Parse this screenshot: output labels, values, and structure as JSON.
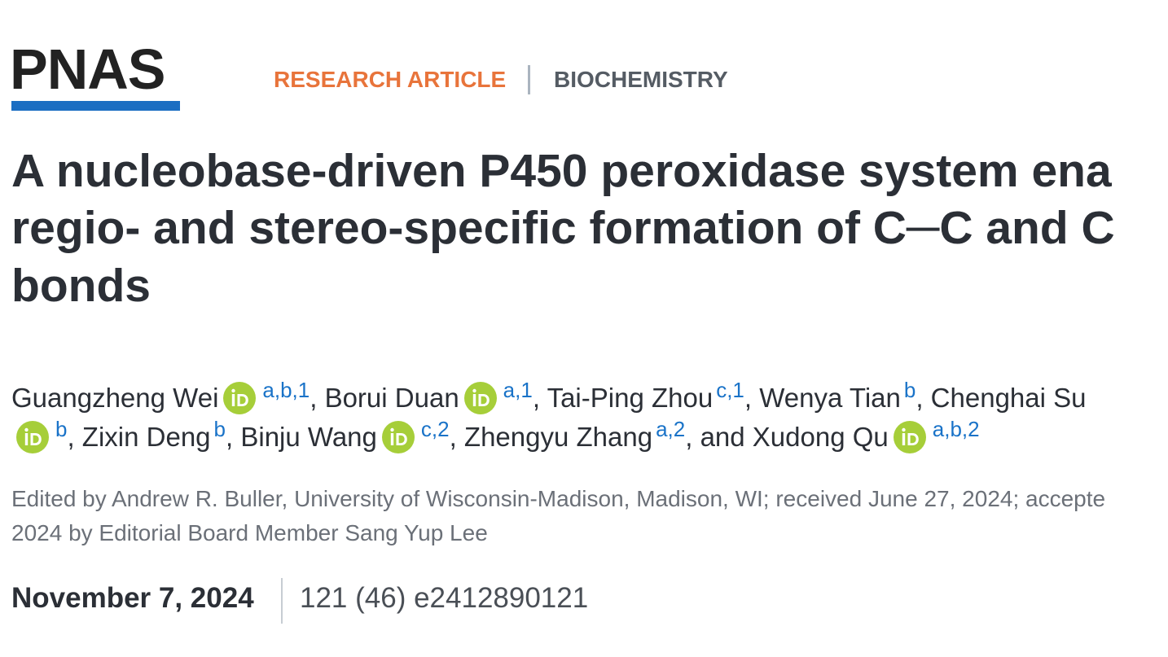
{
  "header": {
    "logo": "PNAS",
    "article_type": "RESEARCH ARTICLE",
    "section": "BIOCHEMISTRY"
  },
  "title_lines": [
    "A nucleobase-driven P450 peroxidase system ena",
    "regio- and stereo-specific formation of C─C and C",
    "bonds"
  ],
  "author_lines": [
    [
      {
        "text": "Guangzheng Wei",
        "orcid": true,
        "sup": "a,b,1"
      },
      {
        "text": ", Borui Duan",
        "orcid": true,
        "sup": "a,1"
      },
      {
        "text": ", Tai-Ping Zhou",
        "orcid": false,
        "sup": "c,1"
      },
      {
        "text": ", Wenya Tian",
        "orcid": false,
        "sup": "b"
      },
      {
        "text": ", Chenghai Su",
        "orcid": false
      }
    ],
    [
      {
        "orcid": true,
        "sup": "b"
      },
      {
        "text": ", Zixin Deng",
        "orcid": false,
        "sup": "b"
      },
      {
        "text": ", Binju Wang",
        "orcid": true,
        "sup": "c,2"
      },
      {
        "text": ", Zhengyu Zhang",
        "orcid": false,
        "sup": "a,2"
      },
      {
        "text": ", and Xudong Qu",
        "orcid": true,
        "sup": "a,b,2"
      }
    ]
  ],
  "editor_lines": [
    "Edited by Andrew R. Buller, University of Wisconsin-Madison, Madison, WI; received June 27, 2024; accepte",
    "2024 by Editorial Board Member Sang Yup Lee"
  ],
  "publication": {
    "date": "November 7, 2024",
    "citation": "121 (46) e2412890121"
  }
}
